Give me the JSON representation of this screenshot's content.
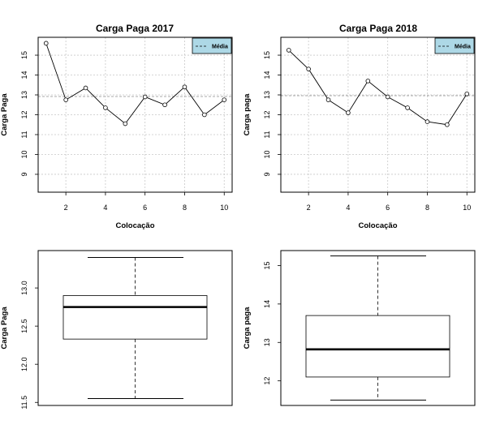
{
  "chart_data": [
    {
      "type": "line",
      "title": "Carga Paga 2017",
      "xlabel": "Colocação",
      "ylabel": "Carga Paga",
      "x": [
        1,
        2,
        3,
        4,
        5,
        6,
        7,
        8,
        9,
        10
      ],
      "values": [
        15.6,
        12.75,
        13.35,
        12.35,
        11.55,
        12.9,
        12.5,
        13.4,
        12.0,
        12.75
      ],
      "mean": 12.92,
      "xlim": [
        0.6,
        10.4
      ],
      "ylim": [
        8.1,
        15.9
      ],
      "xticks": [
        2,
        4,
        6,
        8,
        10
      ],
      "yticks": [
        9,
        10,
        11,
        12,
        13,
        14,
        15
      ],
      "grid": true,
      "legend": {
        "label": "Média",
        "position": "top-right",
        "color": "#add8e6"
      }
    },
    {
      "type": "line",
      "title": "Carga Paga 2018",
      "xlabel": "Colocação",
      "ylabel": "Carga paga",
      "x": [
        1,
        2,
        3,
        4,
        5,
        6,
        7,
        8,
        9,
        10
      ],
      "values": [
        15.25,
        14.3,
        12.75,
        12.1,
        13.7,
        12.9,
        12.35,
        11.65,
        11.5,
        13.05
      ],
      "mean": 12.96,
      "xlim": [
        0.6,
        10.4
      ],
      "ylim": [
        8.1,
        15.9
      ],
      "xticks": [
        2,
        4,
        6,
        8,
        10
      ],
      "yticks": [
        9,
        10,
        11,
        12,
        13,
        14,
        15
      ],
      "grid": true,
      "legend": {
        "label": "Média",
        "position": "top-right",
        "color": "#add8e6"
      }
    },
    {
      "type": "box",
      "ylabel": "Carga Paga",
      "whisker_low": 11.55,
      "q1": 12.33,
      "median": 12.75,
      "q3": 12.9,
      "whisker_high": 13.4,
      "ylim": [
        11.46,
        13.49
      ],
      "yticks": [
        "11.5",
        "12.0",
        "12.5",
        "13.0"
      ]
    },
    {
      "type": "box",
      "ylabel": "Carga paga",
      "whisker_low": 11.5,
      "q1": 12.1,
      "median": 12.82,
      "q3": 13.7,
      "whisker_high": 15.25,
      "ylim": [
        11.36,
        15.39
      ],
      "yticks": [
        "12",
        "13",
        "14",
        "15"
      ]
    }
  ]
}
